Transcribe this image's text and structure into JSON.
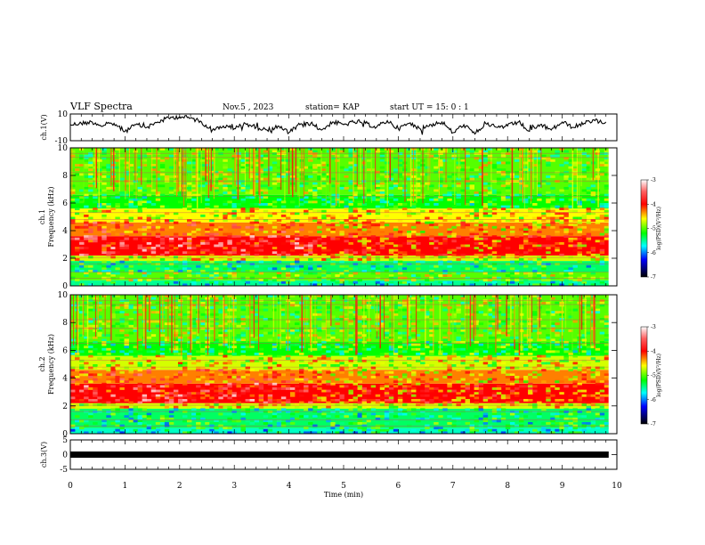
{
  "header": {
    "title": "VLF Spectra",
    "date": "Nov.5  , 2023",
    "station": "station= KAP",
    "start": "start  UT  =   15: 0   : 1"
  },
  "chart_data": [
    {
      "type": "line",
      "panel": "ch1-waveform",
      "ylabel": "ch.1(V)",
      "ylim": [
        -10,
        10
      ],
      "ytick_labels": [
        "10",
        "-10"
      ],
      "xlim": [
        0,
        9.85
      ],
      "description_values_note": "",
      "x": [
        0.0,
        0.2,
        0.4,
        0.6,
        0.8,
        1.0,
        1.2,
        1.4,
        1.6,
        1.8,
        2.0,
        2.2,
        2.4,
        2.6,
        2.8,
        3.0,
        3.2,
        3.4,
        3.6,
        3.8,
        4.0,
        4.2,
        4.4,
        4.6,
        4.8,
        5.0,
        5.2,
        5.4,
        5.6,
        5.8,
        6.0,
        6.2,
        6.4,
        6.6,
        6.8,
        7.0,
        7.2,
        7.4,
        7.6,
        7.8,
        8.0,
        8.2,
        8.4,
        8.6,
        8.8,
        9.0,
        9.2,
        9.4,
        9.6,
        9.8
      ],
      "y": [
        2,
        3,
        4,
        1,
        3,
        -3,
        2,
        0,
        4,
        7,
        8,
        7,
        4,
        -2,
        1,
        -1,
        3,
        0,
        -2,
        1,
        -4,
        2,
        3,
        -2,
        4,
        2,
        4,
        3,
        0,
        5,
        -1,
        3,
        -1,
        2,
        4,
        -4,
        2,
        -5,
        3,
        0,
        1,
        4,
        -3,
        2,
        -2,
        4,
        0,
        3,
        5,
        4
      ]
    },
    {
      "type": "heatmap",
      "panel": "ch1-spectrogram",
      "xlabel": "",
      "ylabel": "ch.1\nFrequency  (kHz)",
      "ylim": [
        0,
        10
      ],
      "ytick_labels": [
        "0",
        "2",
        "4",
        "6",
        "8",
        "10"
      ],
      "xlim": [
        0,
        9.85
      ],
      "colorbar": {
        "label": "log(PSD)(V²/Hz)",
        "range": [
          -7,
          -3
        ],
        "tick_labels": [
          "-3",
          "-4",
          "-5",
          "-6",
          "-7"
        ]
      },
      "bands_log_psd": [
        {
          "f": [
            0.0,
            0.4
          ],
          "level": -5.5
        },
        {
          "f": [
            0.4,
            1.0
          ],
          "level": -5.0
        },
        {
          "f": [
            1.0,
            1.8
          ],
          "level": -5.4
        },
        {
          "f": [
            1.8,
            2.2
          ],
          "level": -4.7
        },
        {
          "f": [
            2.2,
            3.6
          ],
          "level": -4.0
        },
        {
          "f": [
            3.6,
            4.6
          ],
          "level": -4.3
        },
        {
          "f": [
            4.6,
            5.6
          ],
          "level": -4.6
        },
        {
          "f": [
            5.6,
            6.6
          ],
          "level": -5.2
        },
        {
          "f": [
            6.6,
            10.0
          ],
          "level": -5.0
        }
      ]
    },
    {
      "type": "heatmap",
      "panel": "ch2-spectrogram",
      "xlabel": "",
      "ylabel": "ch.2\nFrequency  (kHz)",
      "ylim": [
        0,
        10
      ],
      "ytick_labels": [
        "0",
        "2",
        "4",
        "6",
        "8",
        "10"
      ],
      "xlim": [
        0,
        9.85
      ],
      "colorbar": {
        "label": "log(PSD)(V²/Hz)",
        "range": [
          -7,
          -3
        ],
        "tick_labels": [
          "-3",
          "-4",
          "-5",
          "-6",
          "-7"
        ]
      },
      "bands_log_psd": [
        {
          "f": [
            0.0,
            0.4
          ],
          "level": -5.6
        },
        {
          "f": [
            0.4,
            1.8
          ],
          "level": -5.4
        },
        {
          "f": [
            1.8,
            2.2
          ],
          "level": -4.7
        },
        {
          "f": [
            2.2,
            3.6
          ],
          "level": -4.0
        },
        {
          "f": [
            3.6,
            4.6
          ],
          "level": -4.3
        },
        {
          "f": [
            4.6,
            5.6
          ],
          "level": -4.7
        },
        {
          "f": [
            5.6,
            6.6
          ],
          "level": -5.2
        },
        {
          "f": [
            6.6,
            10.0
          ],
          "level": -5.0
        }
      ]
    },
    {
      "type": "line",
      "panel": "ch3-waveform",
      "ylabel": "ch.3(V)",
      "ylim": [
        -5,
        5
      ],
      "ytick_labels": [
        "5",
        "0",
        "-5"
      ],
      "xlim": [
        0,
        9.85
      ],
      "x": [
        0,
        9.85
      ],
      "y": [
        0,
        0
      ]
    },
    {
      "type": "axis",
      "panel": "time-axis",
      "xlabel": "Time  (min)",
      "xlim": [
        0,
        10
      ],
      "xtick_labels": [
        "0",
        "1",
        "2",
        "3",
        "4",
        "5",
        "6",
        "7",
        "8",
        "9",
        "10"
      ]
    }
  ]
}
